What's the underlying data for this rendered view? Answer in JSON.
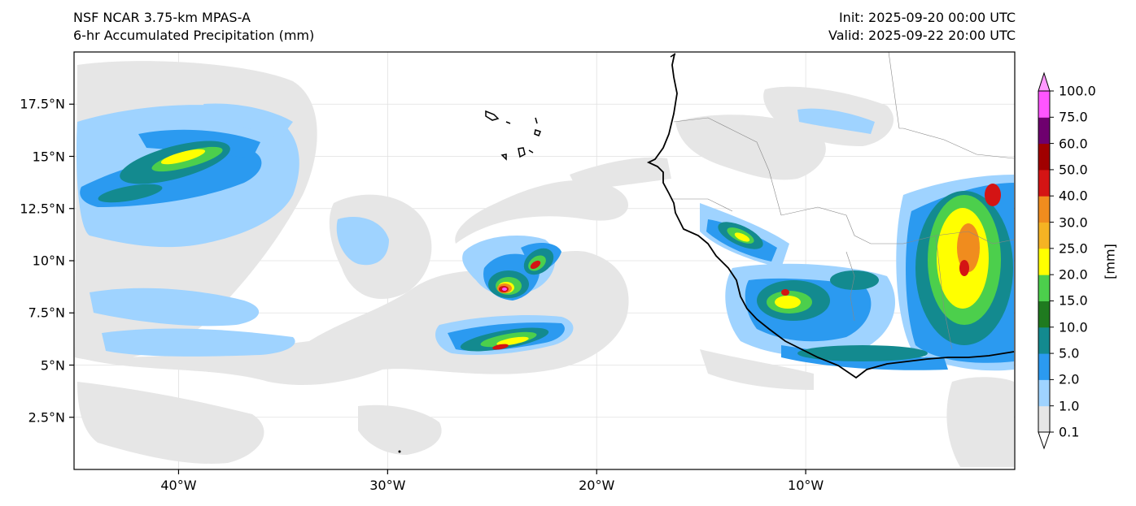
{
  "header": {
    "model": "NSF NCAR 3.75-km MPAS-A",
    "field": "6-hr Accumulated Precipitation (mm)",
    "init": "Init: 2025-09-20 00:00 UTC",
    "valid": "Valid: 2025-09-22 20:00 UTC"
  },
  "map": {
    "lon_range": [
      -45,
      0
    ],
    "lat_range": [
      0,
      20
    ],
    "lat_ticks": [
      {
        "value": 2.5,
        "label": "2.5°N"
      },
      {
        "value": 5,
        "label": "5°N"
      },
      {
        "value": 7.5,
        "label": "7.5°N"
      },
      {
        "value": 10,
        "label": "10°N"
      },
      {
        "value": 12.5,
        "label": "12.5°N"
      },
      {
        "value": 15,
        "label": "15°N"
      },
      {
        "value": 17.5,
        "label": "17.5°N"
      }
    ],
    "lon_ticks": [
      {
        "value": -40,
        "label": "40°W"
      },
      {
        "value": -30,
        "label": "30°W"
      },
      {
        "value": -20,
        "label": "20°W"
      },
      {
        "value": -10,
        "label": "10°W"
      }
    ]
  },
  "colorbar": {
    "unit": "[mm]",
    "levels": [
      "0.1",
      "1.0",
      "2.0",
      "5.0",
      "10.0",
      "15.0",
      "20.0",
      "25.0",
      "30.0",
      "40.0",
      "50.0",
      "60.0",
      "75.0",
      "100.0"
    ],
    "colors": [
      "#e6e6e6",
      "#9fd3ff",
      "#2b9af0",
      "#138a8f",
      "#1f7a1f",
      "#4ccf4c",
      "#ffff00",
      "#f5b323",
      "#f08c1e",
      "#d41414",
      "#a00000",
      "#6e006e",
      "#ff55ff"
    ],
    "under_color": "#ffffff",
    "over_color": "#ff99ff"
  },
  "colors": {
    "coastline": "#000000",
    "borders": "#888888",
    "grid": "#e0e0e0"
  }
}
